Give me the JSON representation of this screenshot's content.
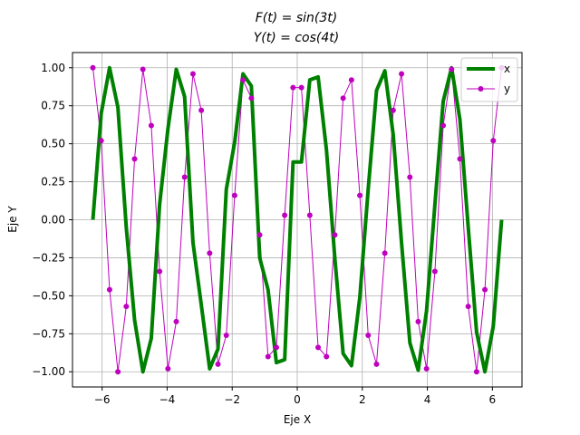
{
  "chart_data": {
    "type": "line",
    "title": [
      "F(t) = sin(3t)",
      "Y(t) = cos(4t)"
    ],
    "xlabel": "Eje X",
    "ylabel": "Eje Y",
    "xlim": [
      -6.91,
      6.91
    ],
    "ylim": [
      -1.1,
      1.1
    ],
    "xticks": [
      -6,
      -4,
      -2,
      0,
      2,
      4,
      6
    ],
    "yticks": [
      -1.0,
      -0.75,
      -0.5,
      -0.25,
      0.0,
      0.25,
      0.5,
      0.75,
      1.0
    ],
    "ytick_labels": [
      "−1.00",
      "−0.75",
      "−0.50",
      "−0.25",
      "0.00",
      "0.25",
      "0.50",
      "0.75",
      "1.00"
    ],
    "xtick_labels": [
      "−6",
      "−4",
      "−2",
      "0",
      "2",
      "4",
      "6"
    ],
    "grid": true,
    "legend_position": "top-right",
    "x": [
      -6.283,
      -6.027,
      -5.77,
      -5.514,
      -5.257,
      -5.001,
      -4.745,
      -4.488,
      -4.232,
      -3.975,
      -3.719,
      -3.463,
      -3.206,
      -2.95,
      -2.693,
      -2.437,
      -2.181,
      -1.924,
      -1.668,
      -1.411,
      -1.155,
      -0.898,
      -0.642,
      -0.386,
      -0.129,
      0.129,
      0.386,
      0.642,
      0.898,
      1.155,
      1.411,
      1.668,
      1.924,
      2.181,
      2.437,
      2.693,
      2.95,
      3.206,
      3.463,
      3.719,
      3.975,
      4.232,
      4.488,
      4.745,
      5.001,
      5.257,
      5.514,
      5.77,
      6.027,
      6.283
    ],
    "series": [
      {
        "name": "x",
        "color": "#008000",
        "values": [
          0.0,
          0.7,
          1.0,
          0.74,
          -0.05,
          -0.66,
          -1.0,
          -0.78,
          0.1,
          0.6,
          0.99,
          0.81,
          -0.15,
          -0.56,
          -0.98,
          -0.85,
          0.2,
          0.51,
          0.96,
          0.88,
          -0.25,
          -0.46,
          -0.94,
          -0.92,
          0.38,
          0.38,
          0.92,
          0.94,
          0.46,
          -0.25,
          -0.88,
          -0.96,
          -0.51,
          0.2,
          0.85,
          0.98,
          0.56,
          -0.15,
          -0.81,
          -0.99,
          -0.6,
          0.1,
          0.78,
          1.0,
          0.66,
          -0.05,
          -0.74,
          -1.0,
          -0.7,
          0.0
        ]
      },
      {
        "name": "y",
        "color": "#bf00bf",
        "values": [
          1.0,
          0.52,
          -0.46,
          -1.0,
          -0.57,
          0.4,
          0.99,
          0.62,
          -0.34,
          -0.98,
          -0.67,
          0.28,
          0.96,
          0.72,
          -0.22,
          -0.95,
          -0.76,
          0.16,
          0.92,
          0.8,
          -0.1,
          -0.9,
          -0.84,
          0.03,
          0.87,
          0.87,
          0.03,
          -0.84,
          -0.9,
          -0.1,
          0.8,
          0.92,
          0.16,
          -0.76,
          -0.95,
          -0.22,
          0.72,
          0.96,
          0.28,
          -0.67,
          -0.98,
          -0.34,
          0.62,
          0.99,
          0.4,
          -0.57,
          -1.0,
          -0.46,
          0.52,
          1.0
        ]
      }
    ]
  }
}
